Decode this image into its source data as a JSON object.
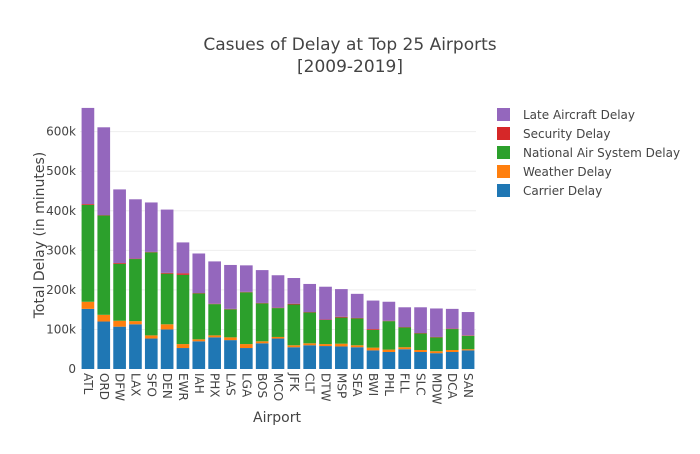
{
  "title_line1": "Casues of Delay at Top 25 Airports",
  "title_line2": "[2009-2019]",
  "chart_data": {
    "type": "bar",
    "stacked": true,
    "title": "Casues of Delay at Top 25 Airports [2009-2019]",
    "xlabel": "Airport",
    "ylabel": "Total Delay (in minutes)",
    "ylim": [
      0,
      680000
    ],
    "yticks": [
      0,
      100000,
      200000,
      300000,
      400000,
      500000,
      600000
    ],
    "ytick_labels": [
      "0",
      "100k",
      "200k",
      "300k",
      "400k",
      "500k",
      "600k"
    ],
    "grid": true,
    "legend_position": "top-right",
    "categories": [
      "ATL",
      "ORD",
      "DFW",
      "LAX",
      "SFO",
      "DEN",
      "EWR",
      "IAH",
      "PHX",
      "LAS",
      "LGA",
      "BOS",
      "MCO",
      "JFK",
      "CLT",
      "DTW",
      "MSP",
      "SEA",
      "BWI",
      "PHL",
      "FLL",
      "SLC",
      "MDW",
      "DCA",
      "SAN"
    ],
    "series": [
      {
        "name": "Carrier Delay",
        "color": "#1f77b4",
        "values": [
          152000,
          120000,
          107000,
          113000,
          77000,
          100000,
          53000,
          70000,
          80000,
          73000,
          53000,
          65000,
          77000,
          55000,
          60000,
          58000,
          57000,
          55000,
          47000,
          43000,
          50000,
          43000,
          40000,
          43000,
          47000
        ]
      },
      {
        "name": "Weather Delay",
        "color": "#ff7f0e",
        "values": [
          18000,
          17000,
          15000,
          8000,
          8000,
          13000,
          10000,
          5000,
          5000,
          7000,
          10000,
          5000,
          4000,
          5000,
          5000,
          5000,
          7000,
          5000,
          7000,
          6000,
          5000,
          5000,
          5000,
          5000,
          3000
        ]
      },
      {
        "name": "National Air System Delay",
        "color": "#2ca02c",
        "values": [
          245000,
          251000,
          144000,
          157000,
          210000,
          128000,
          175000,
          116000,
          79000,
          71000,
          131000,
          96000,
          73000,
          103000,
          78000,
          61000,
          66000,
          68000,
          45000,
          72000,
          50000,
          42000,
          35000,
          53000,
          34000
        ]
      },
      {
        "name": "Security Delay",
        "color": "#d62728",
        "values": [
          2000,
          1000,
          2000,
          1000,
          1000,
          2000,
          4000,
          1000,
          1000,
          1000,
          1000,
          1000,
          1000,
          2000,
          1000,
          1000,
          2000,
          1000,
          2000,
          1000,
          1000,
          1000,
          1000,
          1000,
          1000
        ]
      },
      {
        "name": "Late Aircraft Delay",
        "color": "#9467bd",
        "values": [
          243000,
          222000,
          186000,
          150000,
          125000,
          160000,
          78000,
          100000,
          107000,
          111000,
          67000,
          83000,
          82000,
          65000,
          71000,
          83000,
          70000,
          61000,
          72000,
          48000,
          50000,
          65000,
          72000,
          50000,
          59000
        ]
      }
    ]
  }
}
